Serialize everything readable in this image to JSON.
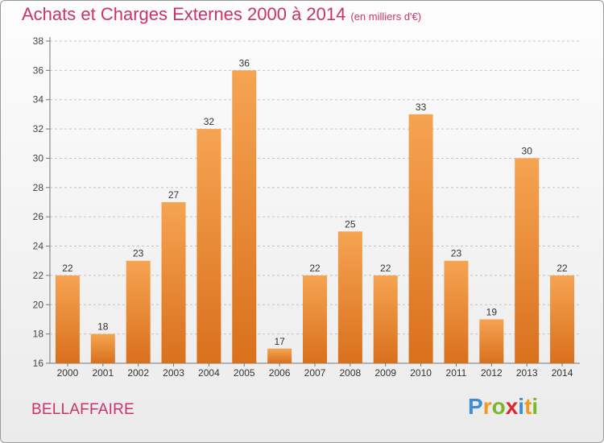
{
  "title": "Achats et Charges Externes 2000 à 2014",
  "subtitle": "(en milliers d'€)",
  "city": "BELLAFFAIRE",
  "logo": {
    "text": "Proxiti",
    "letters": [
      {
        "char": "P",
        "color": "#3a8fd6"
      },
      {
        "char": "r",
        "color": "#f39a1e"
      },
      {
        "char": "o",
        "color": "#7ab829"
      },
      {
        "char": "x",
        "color": "#e2252b"
      },
      {
        "char": "i",
        "color": "#3a8fd6"
      },
      {
        "char": "t",
        "color": "#f39a1e"
      },
      {
        "char": "i",
        "color": "#7ab829"
      }
    ]
  },
  "chart_data": {
    "type": "bar",
    "title": "Achats et Charges Externes 2000 à 2014",
    "subtitle": "(en milliers d'€)",
    "categories": [
      "2000",
      "2001",
      "2002",
      "2003",
      "2004",
      "2005",
      "2006",
      "2007",
      "2008",
      "2009",
      "2010",
      "2011",
      "2012",
      "2013",
      "2014"
    ],
    "values": [
      22,
      18,
      23,
      27,
      32,
      36,
      17,
      22,
      25,
      22,
      33,
      23,
      19,
      30,
      22
    ],
    "ylim": [
      16,
      38
    ],
    "yticks": [
      16,
      18,
      20,
      22,
      24,
      26,
      28,
      30,
      32,
      34,
      36,
      38
    ],
    "grid": "horizontal-dashed",
    "xlabel": "",
    "ylabel": "",
    "bar_color_top": "#f6a452",
    "bar_color_bottom": "#d9701c"
  }
}
